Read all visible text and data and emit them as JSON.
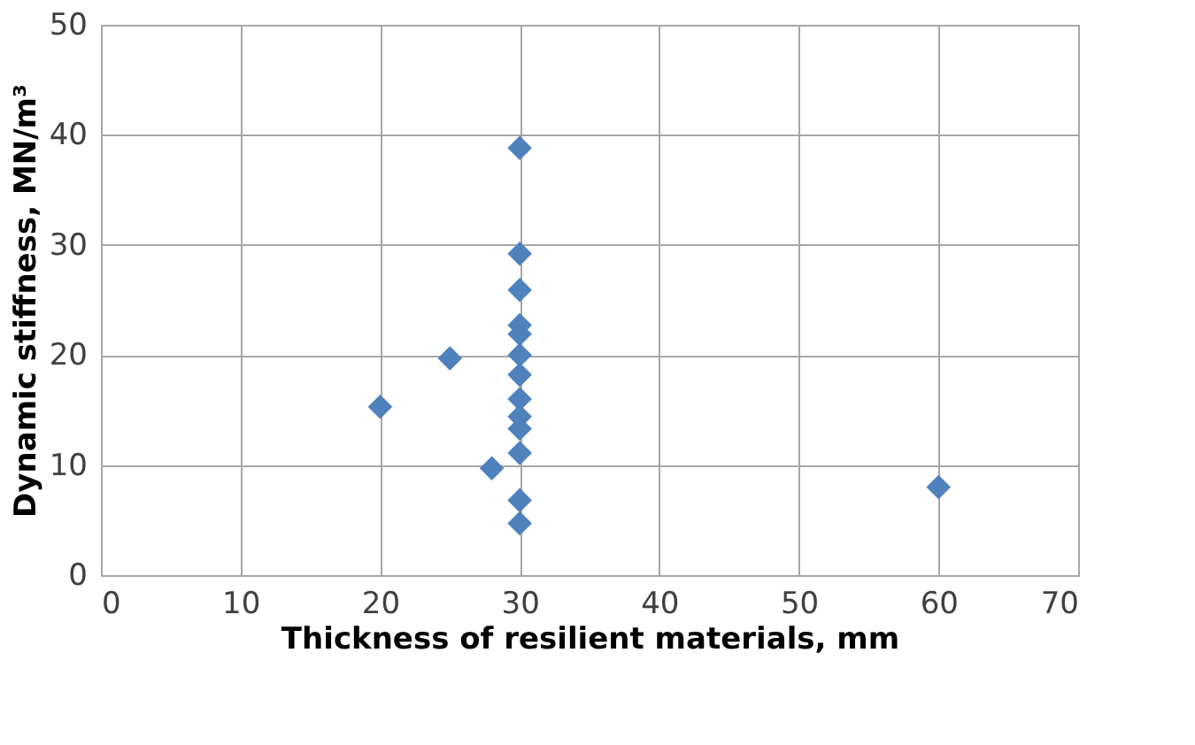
{
  "chart_data": {
    "type": "scatter",
    "xlabel": "Thickness of resilient materials, mm",
    "ylabel": "Dynamic stiffness, MN/m³",
    "x": [
      30,
      30,
      30,
      30,
      30,
      30,
      30,
      30,
      30,
      30,
      30,
      30,
      30,
      28,
      25,
      20,
      60
    ],
    "series": [
      {
        "color": "#4f81bd",
        "values": [
          38.8,
          29.2,
          25.9,
          22.7,
          21.9,
          20.0,
          18.2,
          16.0,
          14.4,
          13.3,
          11.1,
          6.8,
          4.7,
          9.7,
          19.7,
          15.3,
          8.0
        ]
      }
    ],
    "xlim": [
      0,
      70
    ],
    "xticks": [
      0,
      10,
      20,
      30,
      40,
      50,
      60,
      70
    ],
    "ylim": [
      0,
      50
    ],
    "yticks": [
      0,
      10,
      20,
      30,
      40,
      50
    ],
    "grid": true,
    "marker": "diamond"
  }
}
